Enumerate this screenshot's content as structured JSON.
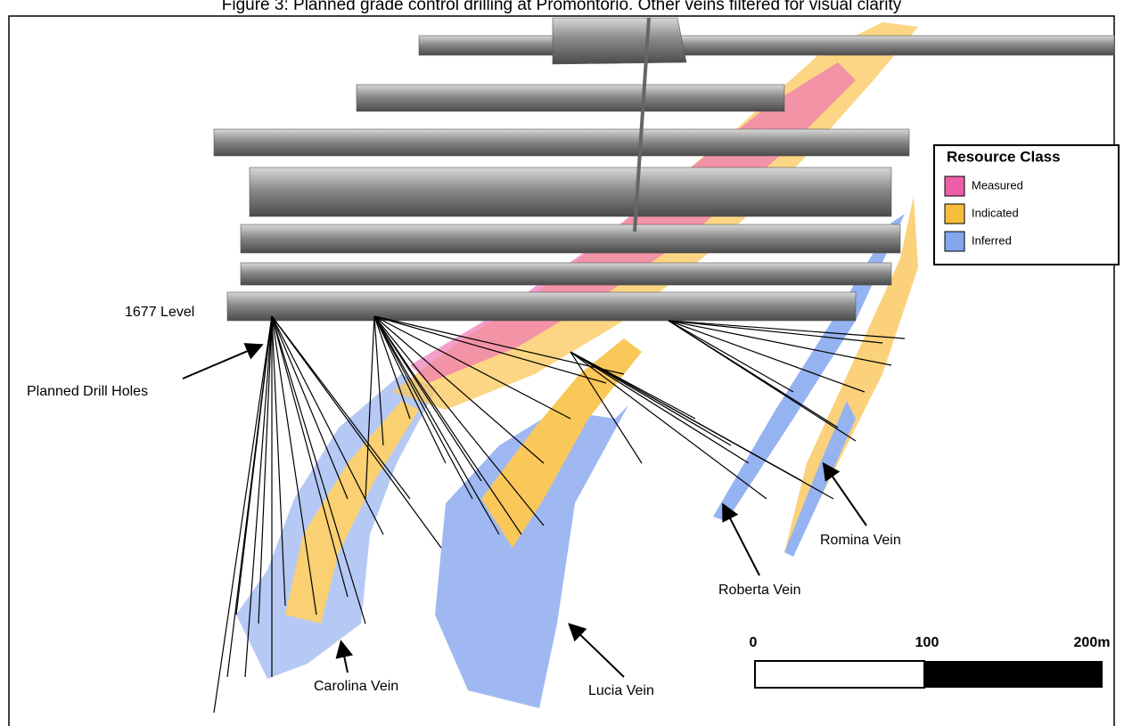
{
  "header": {
    "title": "Figure 3: Planned grade control drilling at Promontorio. Other veins filtered for visual clarity"
  },
  "annotations": {
    "level": "1677 Level",
    "drill_holes": "Planned Drill Holes",
    "carolina": "Carolina Vein",
    "lucia": "Lucia Vein",
    "roberta": "Roberta Vein",
    "romina": "Romina Vein"
  },
  "legend": {
    "title": "Resource Class",
    "items": [
      {
        "label": "Measured",
        "color": "#ec5fa8"
      },
      {
        "label": "Indicated",
        "color": "#f9bd3c"
      },
      {
        "label": "Inferred",
        "color": "#84a6ef"
      }
    ]
  },
  "scale_bar": {
    "labels": [
      "0",
      "100",
      "200m"
    ]
  }
}
